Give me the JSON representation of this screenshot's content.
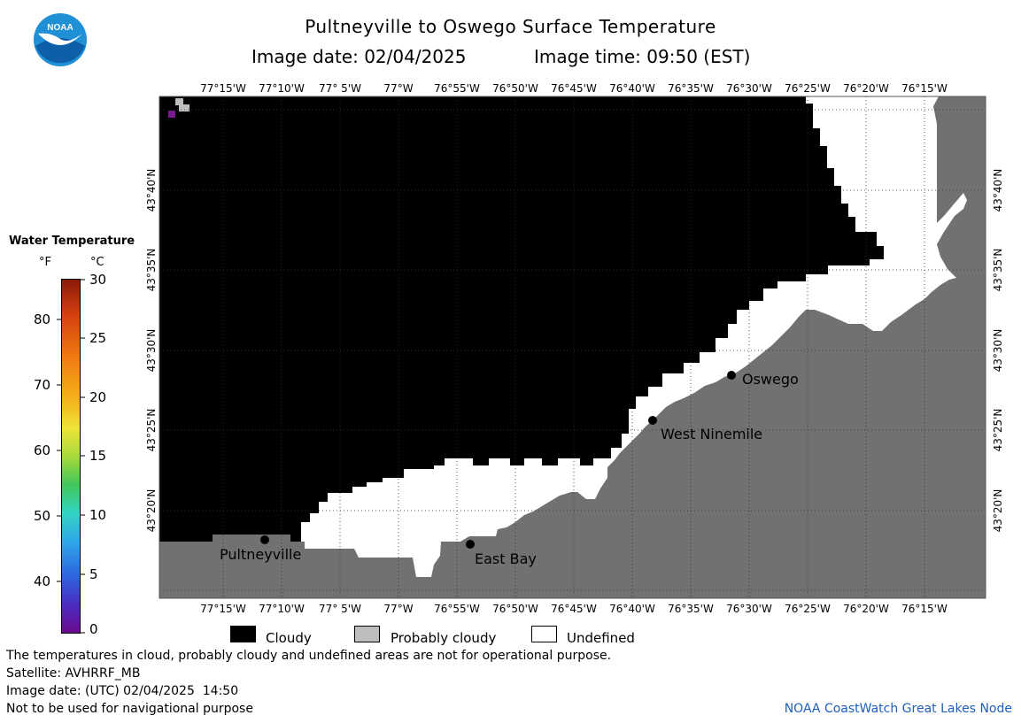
{
  "header": {
    "title": "Pultneyville to Oswego Surface Temperature",
    "image_date_label": "Image date: 02/04/2025",
    "image_time_label": "Image time: 09:50 (EST)"
  },
  "logo": {
    "text": "NOAA",
    "icon": "noaa-logo-icon"
  },
  "map": {
    "lon_labels": [
      "77°15'W",
      "77°10'W",
      "77° 5'W",
      "77°W",
      "76°55'W",
      "76°50'W",
      "76°45'W",
      "76°40'W",
      "76°35'W",
      "76°30'W",
      "76°25'W",
      "76°20'W",
      "76°15'W"
    ],
    "lat_labels": [
      "43°40'N",
      "43°35'N",
      "43°30'N",
      "43°25'N",
      "43°20'N"
    ],
    "places": [
      {
        "name": "Pultneyville"
      },
      {
        "name": "East Bay"
      },
      {
        "name": "West Ninemile"
      },
      {
        "name": "Oswego"
      }
    ],
    "colors": {
      "cloudy": "#000000",
      "probably_cloudy": "#bebebe",
      "undefined": "#ffffff",
      "land": "#717171"
    }
  },
  "colorbar": {
    "title": "Water Temperature",
    "unit_f": "°F",
    "unit_c": "°C",
    "f_ticks": [
      "80",
      "70",
      "60",
      "50",
      "40"
    ],
    "c_ticks": [
      "30",
      "25",
      "20",
      "15",
      "10",
      "5",
      "0"
    ]
  },
  "legend": [
    {
      "label": "Cloudy",
      "color": "#000000"
    },
    {
      "label": "Probably cloudy",
      "color": "#bebebe"
    },
    {
      "label": "Undefined",
      "color": "#ffffff"
    }
  ],
  "footer": {
    "disclaimer": "The temperatures in cloud, probably cloudy and undefined areas are not for operational purpose.",
    "satellite": "Satellite: AVHRRF_MB",
    "utc_date": "Image date: (UTC) 02/04/2025  14:50",
    "nav_warning": "Not to be used for navigational purpose",
    "credit": "NOAA CoastWatch Great Lakes Node"
  }
}
